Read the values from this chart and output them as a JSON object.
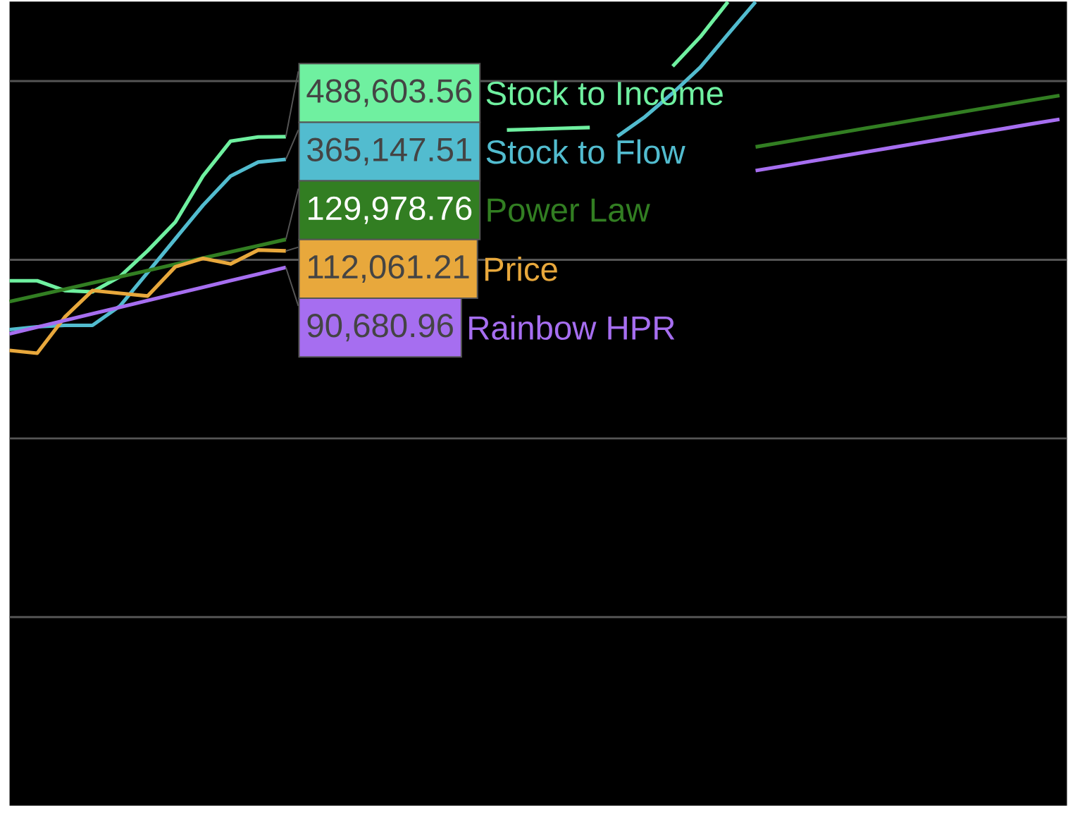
{
  "chart_data": {
    "type": "line",
    "log": "y",
    "grid": "y",
    "marker": "none",
    "line_style": "solid",
    "categories": [
      null,
      null,
      null,
      null,
      null,
      null,
      null,
      null,
      null,
      null,
      null,
      null,
      null,
      null,
      null,
      null,
      null,
      null,
      null,
      null,
      null,
      null,
      null,
      null,
      null,
      null,
      null,
      null,
      null,
      null,
      null,
      null,
      null,
      null,
      null,
      null,
      null,
      null,
      null
    ],
    "ylim": [
      88,
      2790000
    ],
    "yticks": [
      {
        "value": 1000,
        "label": null
      },
      {
        "value": 10000,
        "label": null
      },
      {
        "value": 100000,
        "label": null
      },
      {
        "value": 1000000,
        "label": null
      }
    ],
    "series": [
      {
        "name": "Stock to Income",
        "color": "#6ff0a0",
        "values": [
          76300,
          76300,
          67300,
          66100,
          80600,
          112400,
          162500,
          294400,
          461400,
          487000,
          488603.56,
          null,
          null,
          null,
          null,
          null,
          null,
          null,
          532700,
          538400,
          544400,
          550300,
          null,
          null,
          1212000,
          1769000,
          2780000,
          null,
          null,
          null,
          null,
          null,
          null,
          null,
          null,
          null,
          null,
          null,
          null
        ],
        "value_labels": [
          null,
          null,
          null,
          null,
          null,
          null,
          null,
          null,
          null,
          null,
          "488,603.56",
          null,
          null,
          null,
          null,
          null,
          null,
          null,
          null,
          null,
          null,
          null,
          null,
          null,
          null,
          null,
          null,
          null,
          null,
          null,
          null,
          null,
          null,
          null,
          null,
          null,
          null,
          null,
          null
        ]
      },
      {
        "name": "Stock to Flow",
        "color": "#52bccf",
        "values": [
          40680,
          42170,
          42940,
          42940,
          55230,
          85050,
          131000,
          201700,
          294300,
          352400,
          365147.51,
          null,
          null,
          null,
          null,
          null,
          null,
          null,
          null,
          null,
          null,
          null,
          490500,
          632100,
          856800,
          1195000,
          1830000,
          2780000,
          null,
          null,
          null,
          null,
          null,
          null,
          null,
          null,
          null,
          null,
          null
        ],
        "value_labels": [
          null,
          null,
          null,
          null,
          null,
          null,
          null,
          null,
          null,
          null,
          "365,147.51",
          null,
          null,
          null,
          null,
          null,
          null,
          null,
          null,
          null,
          null,
          null,
          null,
          null,
          null,
          null,
          null,
          null,
          null,
          null,
          null,
          null,
          null,
          null,
          null,
          null,
          null,
          null,
          null
        ]
      },
      {
        "name": "Power Law",
        "color": "#327e22",
        "values": [
          58300,
          63220,
          68440,
          74200,
          80330,
          87070,
          94410,
          102200,
          110800,
          119900,
          129978.76,
          null,
          null,
          null,
          null,
          null,
          null,
          null,
          null,
          null,
          null,
          null,
          null,
          null,
          null,
          null,
          null,
          428500,
          454800,
          483500,
          513100,
          545600,
          578900,
          615400,
          653000,
          694200,
          736600,
          783200,
          830900
        ],
        "value_labels": [
          null,
          null,
          null,
          null,
          null,
          null,
          null,
          null,
          null,
          null,
          "129,978.76",
          null,
          null,
          null,
          null,
          null,
          null,
          null,
          null,
          null,
          null,
          null,
          null,
          null,
          null,
          null,
          null,
          null,
          null,
          null,
          null,
          null,
          null,
          null,
          null,
          null,
          null,
          null,
          null
        ]
      },
      {
        "name": "Price",
        "color": "#e8a83c",
        "values": [
          31100,
          30000,
          47800,
          67300,
          64900,
          62700,
          91400,
          101800,
          94800,
          113400,
          112061.21,
          null,
          null,
          null,
          null,
          null,
          null,
          null,
          null,
          null,
          null,
          null,
          null,
          null,
          null,
          null,
          null,
          null,
          null,
          null,
          null,
          null,
          null,
          null,
          null,
          null,
          null,
          null,
          null
        ],
        "value_labels": [
          null,
          null,
          null,
          null,
          null,
          null,
          null,
          null,
          null,
          null,
          "112,061.21",
          null,
          null,
          null,
          null,
          null,
          null,
          null,
          null,
          null,
          null,
          null,
          null,
          null,
          null,
          null,
          null,
          null,
          null,
          null,
          null,
          null,
          null,
          null,
          null,
          null,
          null,
          null,
          null
        ]
      },
      {
        "name": "Rainbow HPR",
        "color": "#a66ef0",
        "values": [
          38540,
          42020,
          45740,
          49850,
          54250,
          59150,
          64480,
          70200,
          76480,
          83230,
          90680.96,
          null,
          null,
          null,
          null,
          null,
          null,
          null,
          null,
          null,
          null,
          null,
          null,
          null,
          null,
          null,
          null,
          315700,
          335000,
          356100,
          378000,
          401700,
          426400,
          453100,
          480800,
          511300,
          542600,
          576800,
          611600
        ],
        "value_labels": [
          null,
          null,
          null,
          null,
          null,
          null,
          null,
          null,
          null,
          null,
          "90,680.96",
          null,
          null,
          null,
          null,
          null,
          null,
          null,
          null,
          null,
          null,
          null,
          null,
          null,
          null,
          null,
          null,
          null,
          null,
          null,
          null,
          null,
          null,
          null,
          null,
          null,
          null,
          null,
          null
        ]
      }
    ]
  }
}
